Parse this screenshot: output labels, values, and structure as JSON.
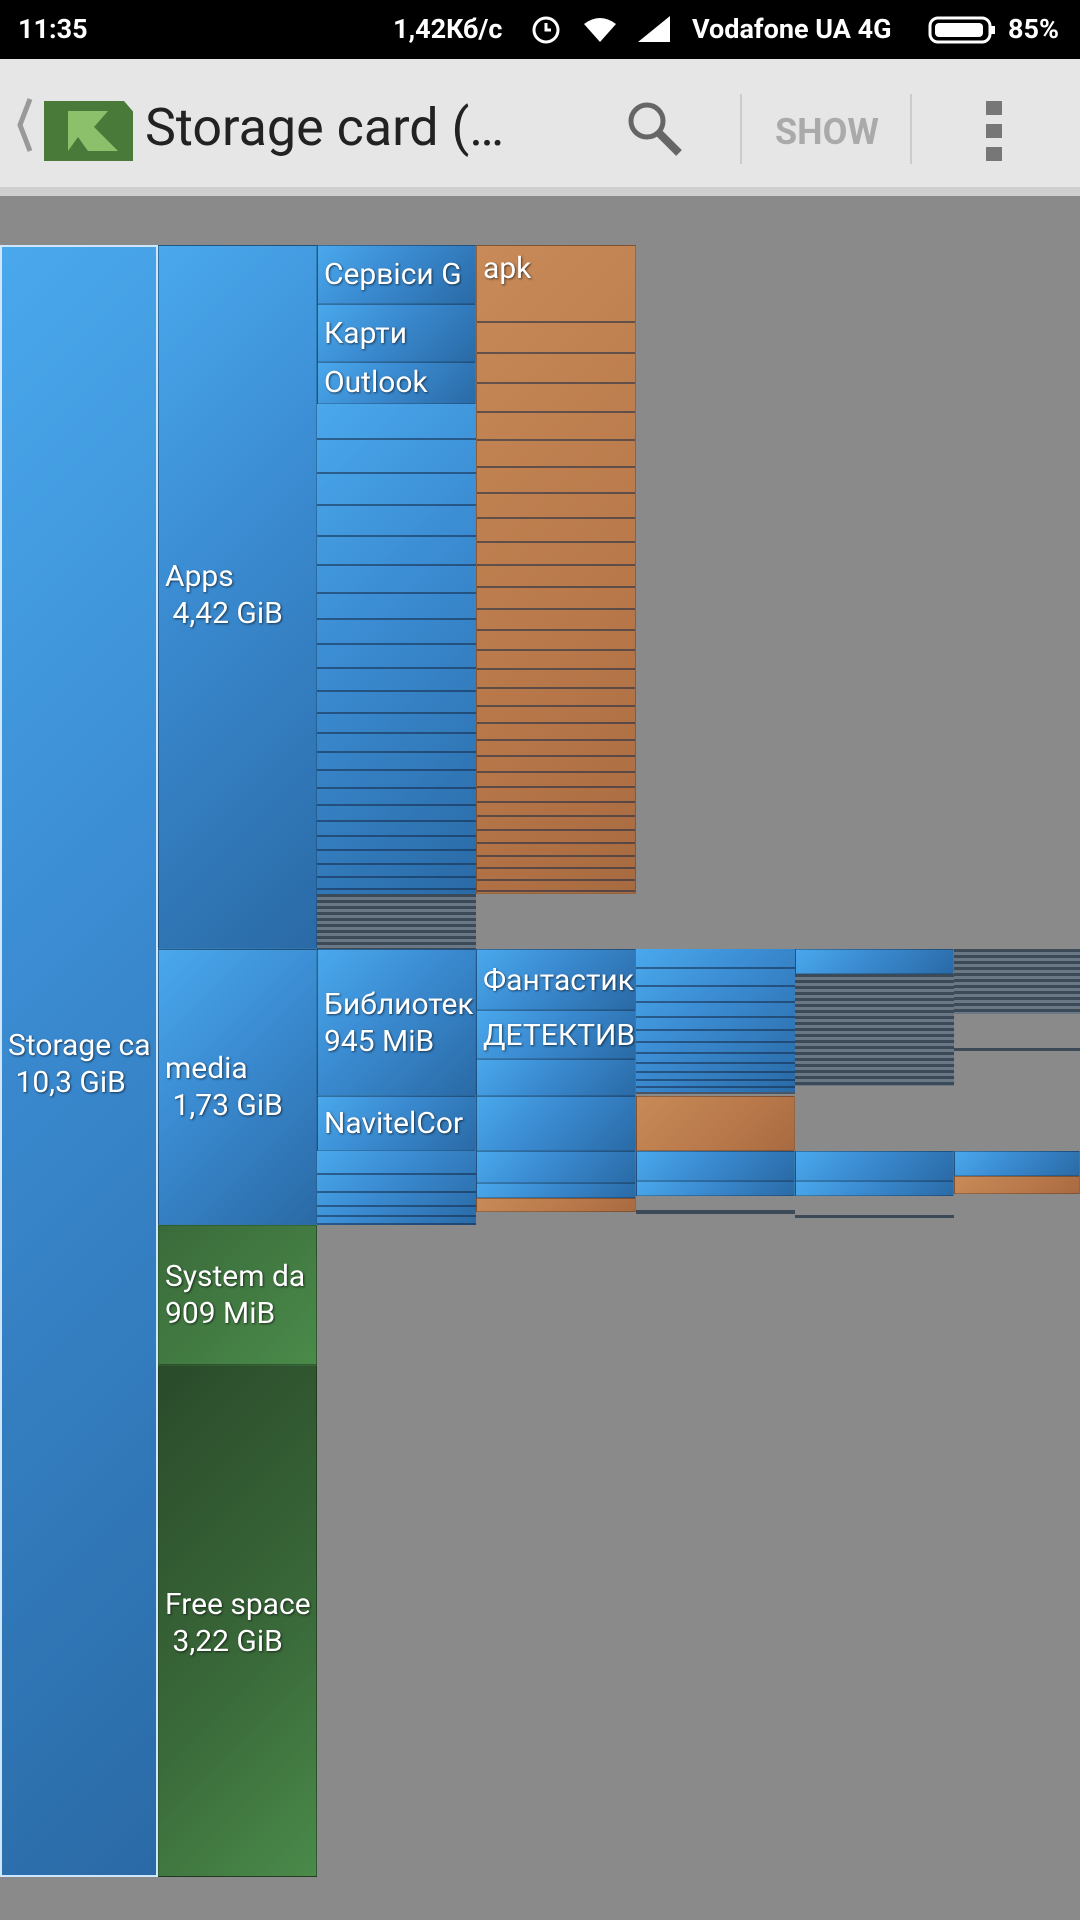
{
  "status_bar": {
    "time": "11:35",
    "speed": "1,42Кб/с",
    "carrier": "Vodafone UA 4G",
    "battery": "85%"
  },
  "toolbar": {
    "title": "Storage card (…",
    "action": "SHOW"
  },
  "blocks": {
    "storage": {
      "name": "Storage ca",
      "size": "10,3 GiB"
    },
    "apps": {
      "name": "Apps",
      "size": "4,42 GiB"
    },
    "media": {
      "name": "media",
      "size": "1,73 GiB"
    },
    "system": {
      "name": "System da",
      "size": "909 MiB"
    },
    "free": {
      "name": "Free space",
      "size": "3,22 GiB"
    },
    "google_services": {
      "name": "Сервіси G"
    },
    "maps": {
      "name": "Карти"
    },
    "outlook": {
      "name": "Outlook"
    },
    "apk": {
      "name": "apk"
    },
    "library": {
      "name": "Библиотек",
      "size": "945 MiB"
    },
    "navitel": {
      "name": "NavitelCor"
    },
    "fantasy": {
      "name": "Фантастик"
    },
    "detective": {
      "name": "ДЕТЕКТИВ"
    }
  }
}
